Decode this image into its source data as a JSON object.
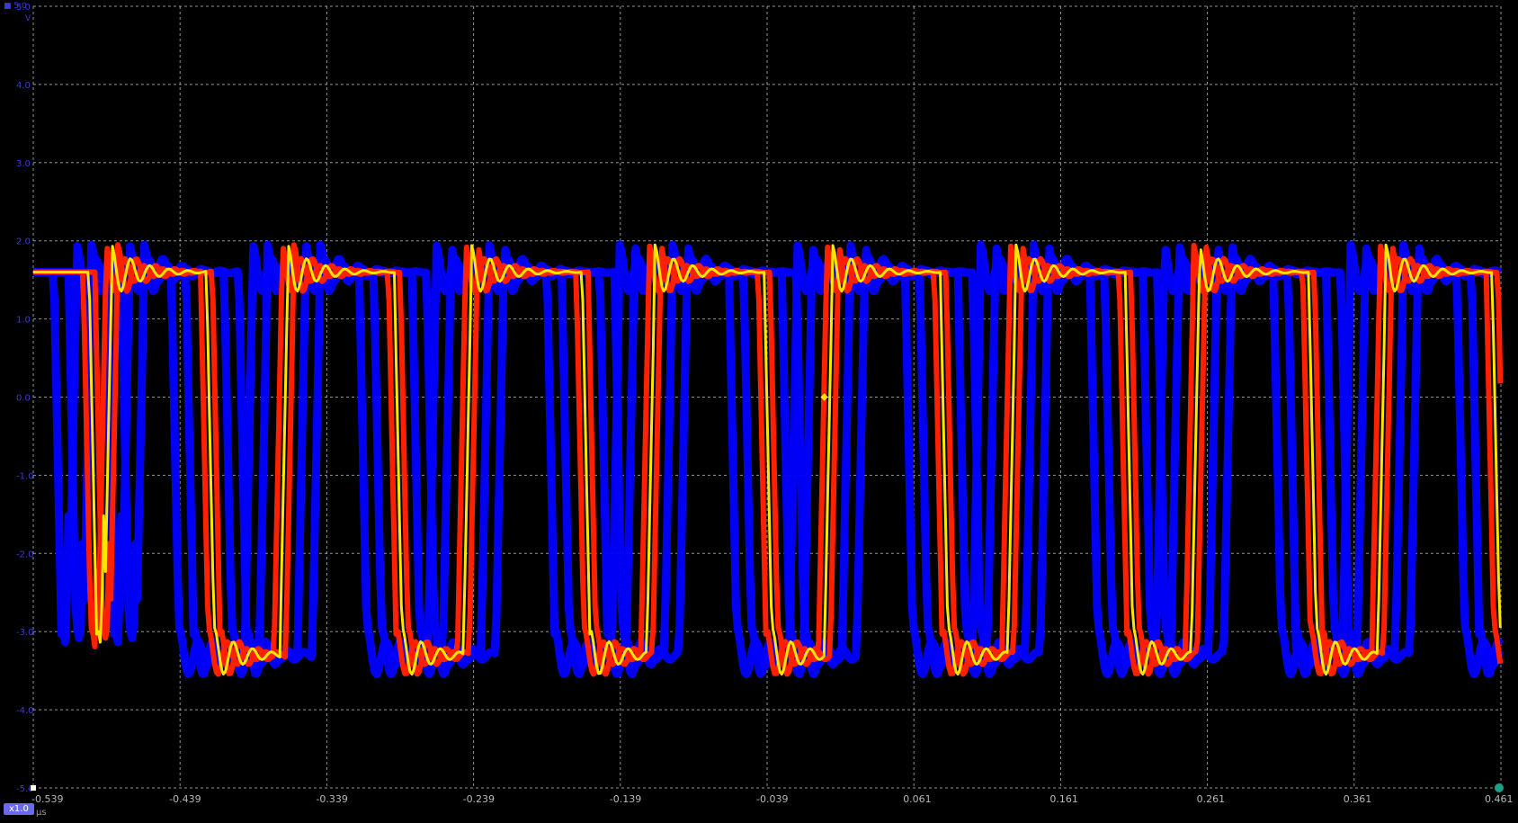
{
  "chart_data": {
    "type": "line",
    "title": "",
    "xlabel": "μs",
    "ylabel": "V",
    "xlim": [
      -0.539,
      0.461
    ],
    "ylim": [
      -5.0,
      5.0
    ],
    "grid": true,
    "x_ticks": [
      "-0.539",
      "-0.439",
      "-0.339",
      "-0.239",
      "-0.139",
      "-0.039",
      "0.061",
      "0.161",
      "0.261",
      "0.361",
      "0.461"
    ],
    "y_ticks": [
      "5.0",
      "4.0",
      "3.0",
      "2.0",
      "1.0",
      "0.0",
      "-1.0",
      "-2.0",
      "-3.0",
      "-4.0",
      "-5.0"
    ],
    "waveform": {
      "kind": "square persistence",
      "high_level": 1.6,
      "low_level": -3.3,
      "overshoot_peak": 1.95,
      "undershoot_peak": -2.95,
      "trigger_level": 0.0,
      "trigger_time": 0.0
    },
    "series": [
      {
        "color": "#ffe600",
        "edges": [
          [
            "fall",
            -0.501
          ],
          [
            "rise",
            -0.493
          ],
          [
            "rise",
            -0.491
          ],
          [
            "fall",
            -0.421
          ],
          [
            "rise",
            -0.371
          ],
          [
            "fall",
            -0.293
          ],
          [
            "rise",
            -0.246
          ],
          [
            "fall",
            -0.165
          ],
          [
            "rise",
            -0.121
          ],
          [
            "fall",
            -0.041
          ],
          [
            "rise",
            0.0
          ],
          [
            "fall",
            0.079
          ],
          [
            "rise",
            0.125
          ],
          [
            "fall",
            0.205
          ],
          [
            "rise",
            0.25
          ],
          [
            "fall",
            0.33
          ],
          [
            "rise",
            0.377
          ],
          [
            "fall",
            0.455
          ]
        ]
      }
    ],
    "persistence_colors": [
      "#0000ff",
      "#ff2000",
      "#ffe600"
    ]
  },
  "labels": {
    "channel_marker": "■ 5.0",
    "channel_unit": "V",
    "zoom": "x1.0",
    "time_unit": "μs"
  }
}
